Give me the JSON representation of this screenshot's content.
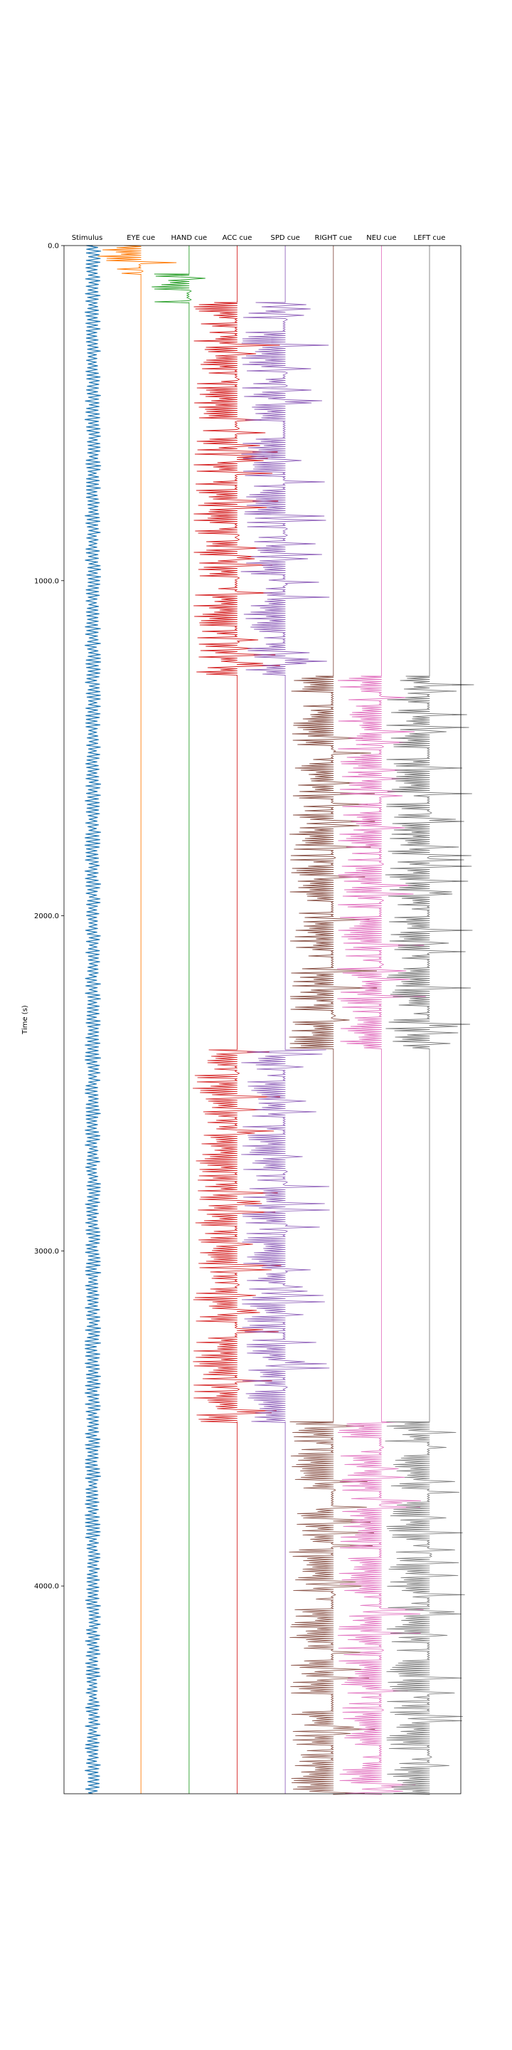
{
  "chart_data": {
    "type": "line",
    "title": "",
    "xlabel": "",
    "ylabel": "Time (s)",
    "ylim": [
      0,
      4620
    ],
    "yaxis_inverted": true,
    "grid": false,
    "legend": "none",
    "y_ticks": [
      0,
      1000,
      2000,
      3000,
      4000
    ],
    "y_tick_labels": [
      "0.0",
      "1000.0",
      "2000.0",
      "3000.0",
      "4000.0"
    ],
    "series": [
      {
        "name": "Stimulus",
        "color": "#1f77b4",
        "segments": [
          [
            0,
            4620
          ]
        ]
      },
      {
        "name": "EYE cue",
        "color": "#ff7f0e",
        "segments": [
          [
            0,
            85
          ]
        ]
      },
      {
        "name": "HAND cue",
        "color": "#2ca02c",
        "segments": [
          [
            85,
            170
          ]
        ]
      },
      {
        "name": "ACC cue",
        "color": "#d62728",
        "segments": [
          [
            170,
            1285
          ],
          [
            2400,
            3510
          ]
        ]
      },
      {
        "name": "SPD cue",
        "color": "#9467bd",
        "segments": [
          [
            170,
            1285
          ],
          [
            2400,
            3510
          ]
        ]
      },
      {
        "name": "RIGHT cue",
        "color": "#8c564b",
        "segments": [
          [
            1285,
            2400
          ],
          [
            3510,
            4620
          ]
        ]
      },
      {
        "name": "NEU cue",
        "color": "#e377c2",
        "segments": [
          [
            1285,
            2400
          ],
          [
            3510,
            4620
          ]
        ]
      },
      {
        "name": "LEFT cue",
        "color": "#7f7f7f",
        "segments": [
          [
            1285,
            2400
          ],
          [
            3510,
            4620
          ]
        ]
      }
    ]
  }
}
